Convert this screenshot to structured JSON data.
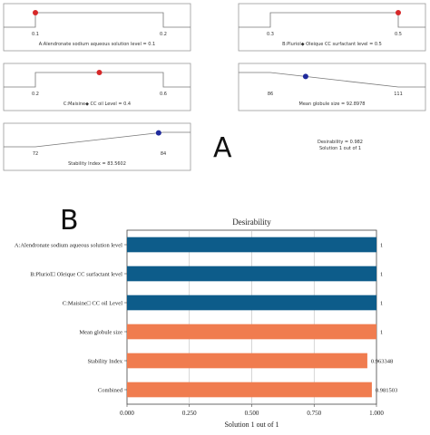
{
  "panel_a": {
    "letter": "A",
    "desirability_label": "Desirability = 0.982",
    "solution_label": "Solution 1 out of 1",
    "ramps": [
      {
        "id": "ramp-a",
        "label": "A:Alendronate sodium aqueous solution level = 0.1",
        "min": 0.1,
        "max": 0.2,
        "value": 0.1,
        "min_label": "0.1",
        "max_label": "0.2",
        "dot_color": "#d62728",
        "shape": "flat"
      },
      {
        "id": "ramp-b",
        "label": "B:Pluriol◆ Oleique CC surfactant level = 0.5",
        "min": 0.3,
        "max": 0.5,
        "value": 0.5,
        "min_label": "0.3",
        "max_label": "0.5",
        "dot_color": "#d62728",
        "shape": "flat"
      },
      {
        "id": "ramp-c",
        "label": "C:Maisine◆ CC oil Level = 0.4",
        "min": 0.2,
        "max": 0.6,
        "value": 0.4,
        "min_label": "0.2",
        "max_label": "0.6",
        "dot_color": "#d62728",
        "shape": "flat"
      },
      {
        "id": "ramp-d",
        "label": "Mean globule size = 92.8978",
        "min": 86,
        "max": 111,
        "value": 92.8978,
        "min_label": "86",
        "max_label": "111",
        "dot_color": "#1f2a9c",
        "shape": "falling"
      },
      {
        "id": "ramp-e",
        "label": "Stability Index = 83.5602",
        "min": 72,
        "max": 84,
        "value": 83.5602,
        "min_label": "72",
        "max_label": "84",
        "dot_color": "#1f2a9c",
        "shape": "rising"
      }
    ]
  },
  "panel_b": {
    "letter": "B"
  },
  "chart_data": {
    "type": "bar",
    "orientation": "horizontal",
    "title": "Desirability",
    "xlabel": "Solution 1 out of 1",
    "xlim": [
      0,
      1
    ],
    "xticks": [
      "0.000",
      "0.250",
      "0.500",
      "0.750",
      "1.000"
    ],
    "grid": true,
    "categories": [
      "A:Alendronate sodium aqueous solution level",
      "B:Pluriol□ Oleique CC surfactant level",
      "C:Maisine□ CC oil Level",
      "Mean globule size",
      "Stability Index",
      "Combined"
    ],
    "values": [
      1,
      1,
      1,
      1,
      0.963348,
      0.981503
    ],
    "value_labels": [
      "1",
      "1",
      "1",
      "1",
      "0.963348",
      "0.981503"
    ],
    "colors": [
      "#0d5c8a",
      "#0d5c8a",
      "#0d5c8a",
      "#f07c4f",
      "#f07c4f",
      "#f07c4f"
    ]
  }
}
